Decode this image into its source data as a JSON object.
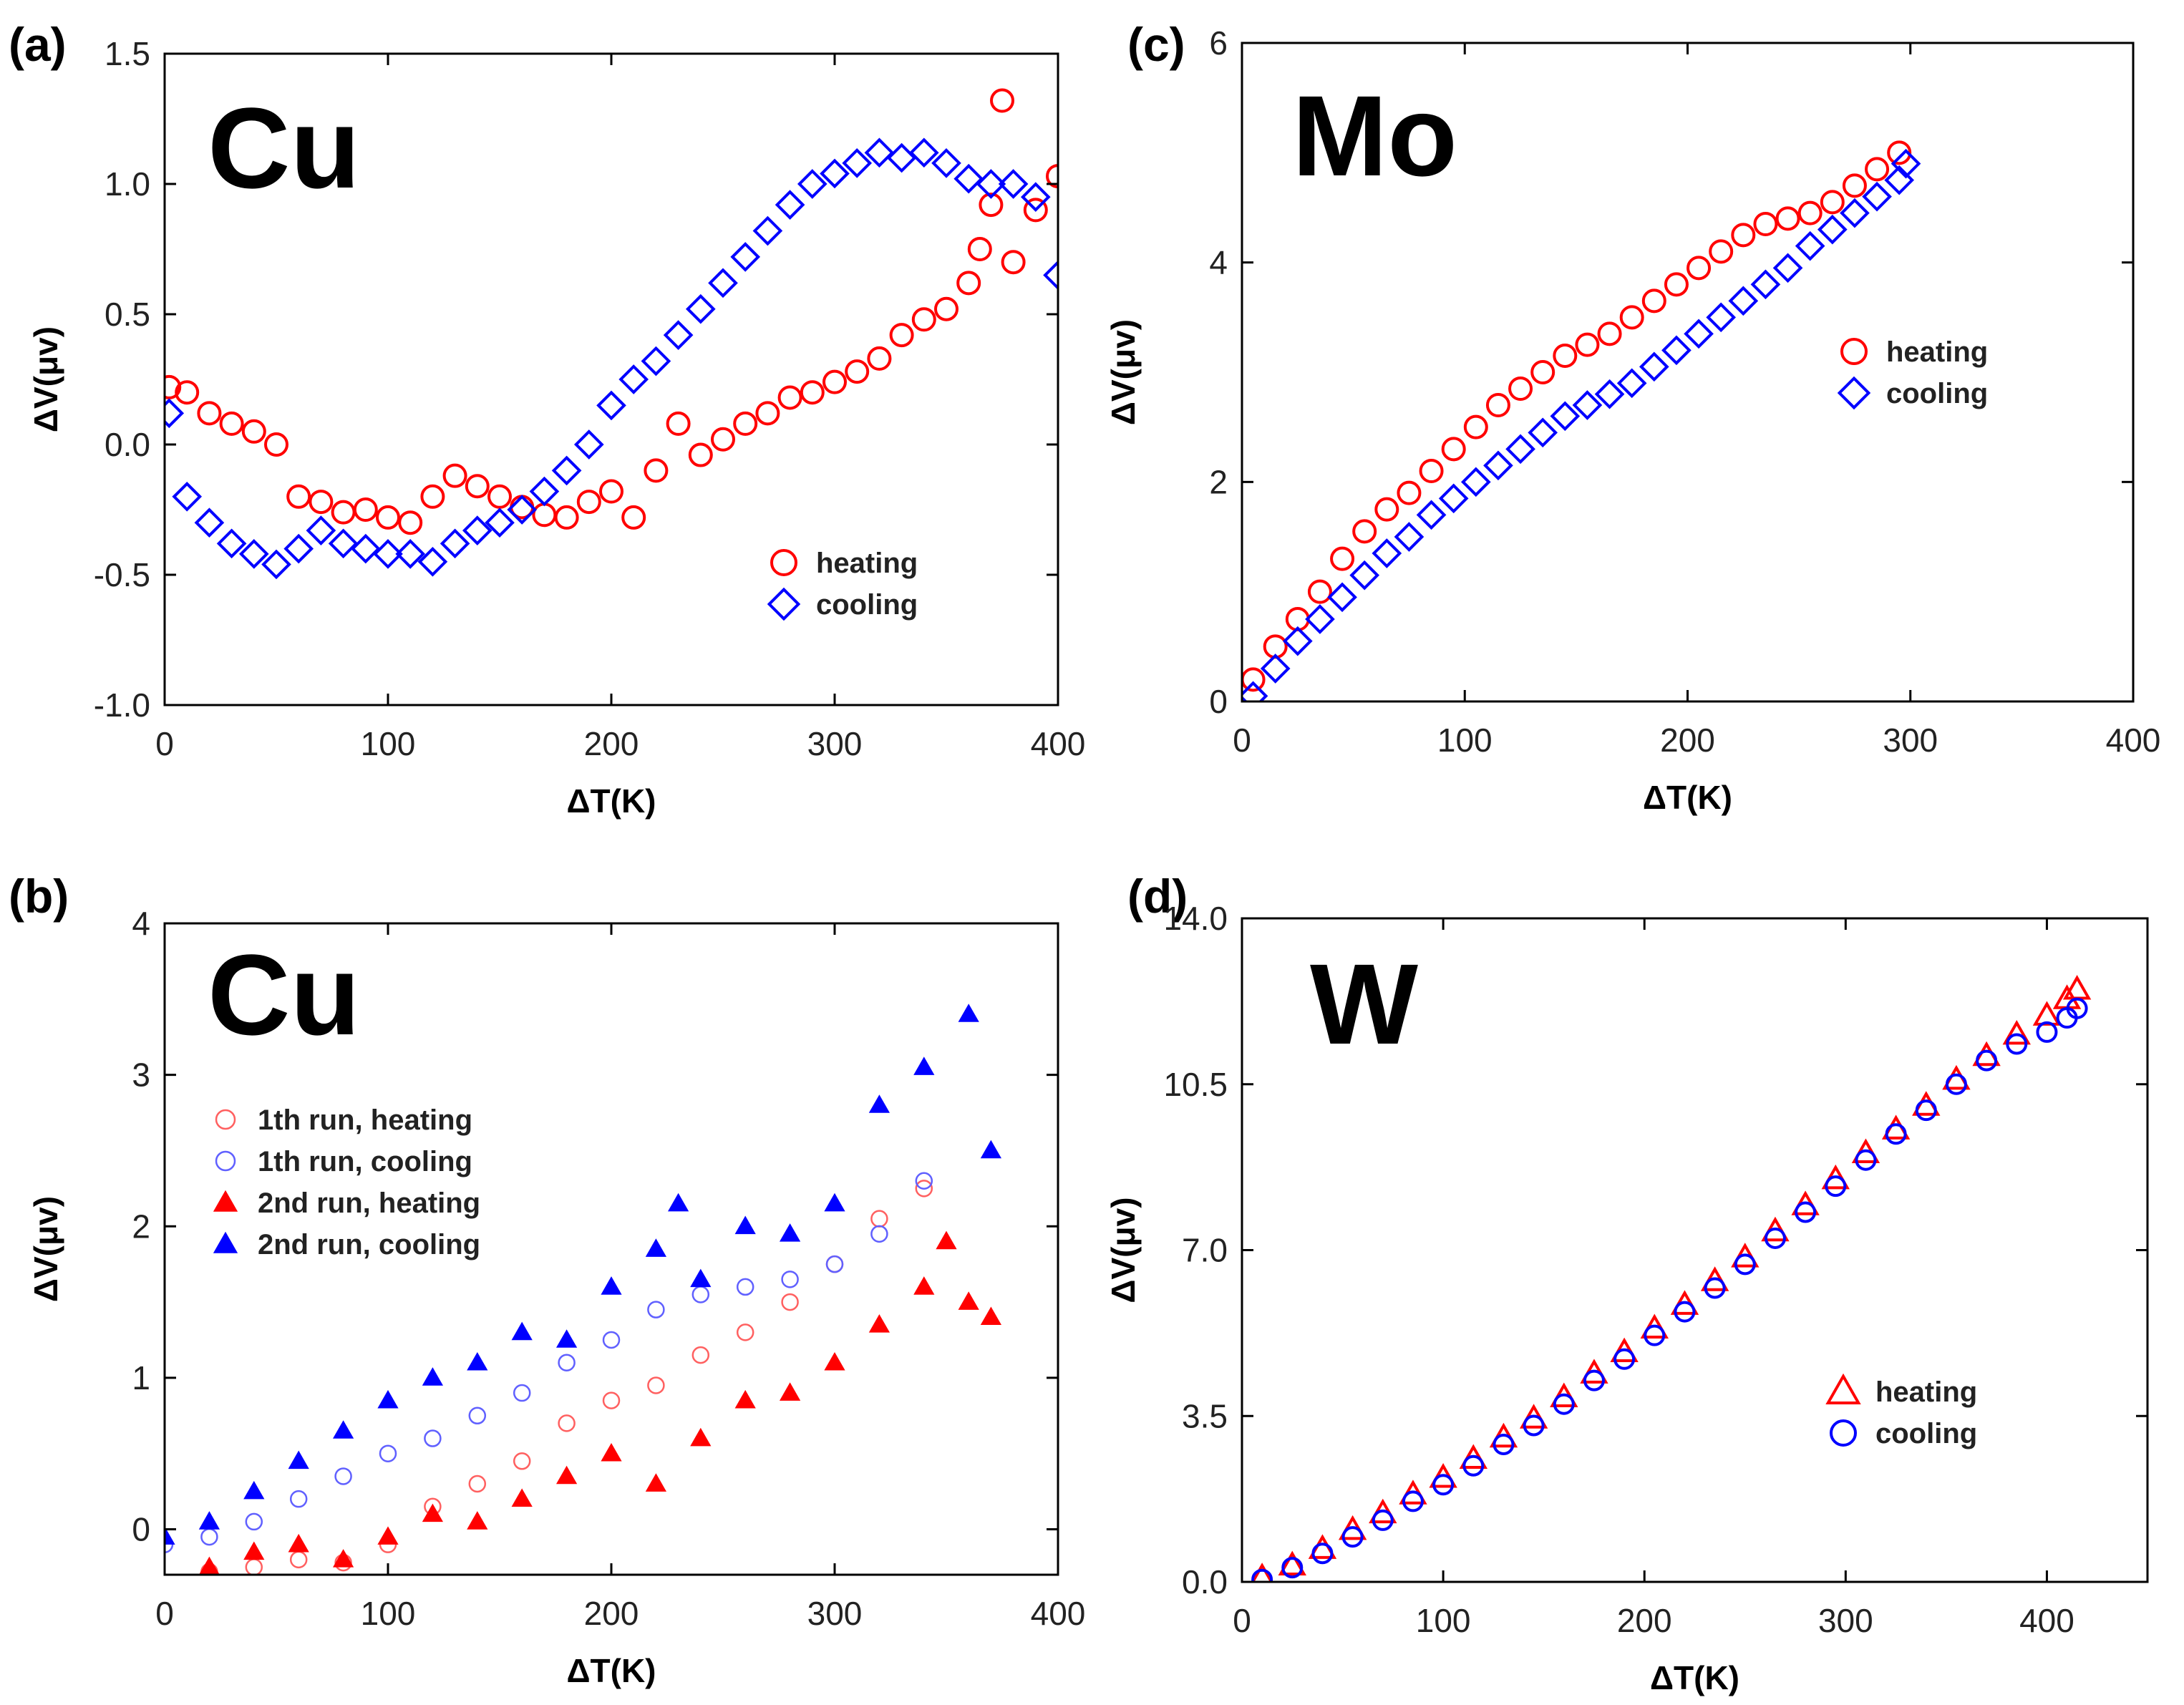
{
  "panels": [
    {
      "id": "a",
      "panel_label": "(a)",
      "element_label": "Cu",
      "chart_data": {
        "type": "scatter",
        "xlabel": "ΔT(K)",
        "ylabel": "ΔV(μv)",
        "xlim": [
          0,
          400
        ],
        "ylim": [
          -1.0,
          1.5
        ],
        "xticks": [
          0,
          100,
          200,
          300,
          400
        ],
        "xtick_labels": [
          "0",
          "100",
          "200",
          "300",
          "400"
        ],
        "yticks": [
          -1.0,
          -0.5,
          0.0,
          0.5,
          1.0,
          1.5
        ],
        "ytick_labels": [
          "-1.0",
          "-0.5",
          "0.0",
          "0.5",
          "1.0",
          "1.5"
        ],
        "grid": false,
        "legend_position": "lower-right",
        "series": [
          {
            "name": "heating",
            "color": "#ff0000",
            "marker": "open-circle",
            "x": [
              2,
              10,
              20,
              30,
              40,
              50,
              60,
              70,
              80,
              90,
              100,
              110,
              120,
              130,
              140,
              150,
              160,
              170,
              180,
              190,
              200,
              210,
              220,
              230,
              240,
              250,
              260,
              270,
              280,
              290,
              300,
              310,
              320,
              330,
              340,
              350,
              360,
              365,
              370,
              375,
              380,
              390,
              400
            ],
            "y": [
              0.22,
              0.2,
              0.12,
              0.08,
              0.05,
              0.0,
              -0.2,
              -0.22,
              -0.26,
              -0.25,
              -0.28,
              -0.3,
              -0.2,
              -0.12,
              -0.16,
              -0.2,
              -0.24,
              -0.27,
              -0.28,
              -0.22,
              -0.18,
              -0.28,
              -0.1,
              0.08,
              -0.04,
              0.02,
              0.08,
              0.12,
              0.18,
              0.2,
              0.24,
              0.28,
              0.33,
              0.42,
              0.48,
              0.52,
              0.62,
              0.75,
              0.92,
              1.32,
              0.7,
              0.9,
              1.03
            ]
          },
          {
            "name": "cooling",
            "color": "#0000ff",
            "marker": "open-diamond",
            "x": [
              2,
              10,
              20,
              30,
              40,
              50,
              60,
              70,
              80,
              90,
              100,
              110,
              120,
              130,
              140,
              150,
              160,
              170,
              180,
              190,
              200,
              210,
              220,
              230,
              240,
              250,
              260,
              270,
              280,
              290,
              300,
              310,
              320,
              330,
              340,
              350,
              360,
              370,
              380,
              390,
              400
            ],
            "y": [
              0.12,
              -0.2,
              -0.3,
              -0.38,
              -0.42,
              -0.46,
              -0.4,
              -0.33,
              -0.38,
              -0.4,
              -0.42,
              -0.42,
              -0.45,
              -0.38,
              -0.33,
              -0.3,
              -0.25,
              -0.18,
              -0.1,
              0.0,
              0.15,
              0.25,
              0.32,
              0.42,
              0.52,
              0.62,
              0.72,
              0.82,
              0.92,
              1.0,
              1.04,
              1.08,
              1.12,
              1.1,
              1.12,
              1.08,
              1.02,
              1.0,
              1.0,
              0.95,
              0.65
            ]
          }
        ]
      }
    },
    {
      "id": "b",
      "panel_label": "(b)",
      "element_label": "Cu",
      "chart_data": {
        "type": "scatter",
        "xlabel": "ΔT(K)",
        "ylabel": "ΔV(μv)",
        "xlim": [
          0,
          400
        ],
        "ylim": [
          -0.3,
          4.0
        ],
        "xticks": [
          0,
          100,
          200,
          300,
          400
        ],
        "xtick_labels": [
          "0",
          "100",
          "200",
          "300",
          "400"
        ],
        "yticks": [
          0,
          1,
          2,
          3,
          4
        ],
        "ytick_labels": [
          "0",
          "1",
          "2",
          "3",
          "4"
        ],
        "grid": false,
        "legend_position": "upper-left",
        "series": [
          {
            "name": "1th run, heating",
            "color": "#ff6060",
            "marker": "open-circle-small",
            "x": [
              20,
              40,
              60,
              80,
              100,
              120,
              140,
              160,
              180,
              200,
              220,
              240,
              260,
              280,
              300,
              320,
              340
            ],
            "y": [
              -0.28,
              -0.25,
              -0.2,
              -0.22,
              -0.1,
              0.15,
              0.3,
              0.45,
              0.7,
              0.85,
              0.95,
              1.15,
              1.3,
              1.5,
              1.75,
              2.05,
              2.25
            ]
          },
          {
            "name": "1th run, cooling",
            "color": "#6060ff",
            "marker": "open-circle-small",
            "x": [
              0,
              20,
              40,
              60,
              80,
              100,
              120,
              140,
              160,
              180,
              200,
              220,
              240,
              260,
              280,
              300,
              320,
              340
            ],
            "y": [
              -0.1,
              -0.05,
              0.05,
              0.2,
              0.35,
              0.5,
              0.6,
              0.75,
              0.9,
              1.1,
              1.25,
              1.45,
              1.55,
              1.6,
              1.65,
              1.75,
              1.95,
              2.3
            ]
          },
          {
            "name": "2nd run, heating",
            "color": "#ff0000",
            "marker": "filled-triangle",
            "x": [
              20,
              40,
              60,
              80,
              100,
              120,
              140,
              160,
              180,
              200,
              220,
              240,
              260,
              280,
              300,
              320,
              340,
              350,
              360,
              370
            ],
            "y": [
              -0.25,
              -0.15,
              -0.1,
              -0.2,
              -0.05,
              0.1,
              0.05,
              0.2,
              0.35,
              0.5,
              0.3,
              0.6,
              0.85,
              0.9,
              1.1,
              1.35,
              1.6,
              1.9,
              1.5,
              1.4
            ]
          },
          {
            "name": "2nd run, cooling",
            "color": "#0000ff",
            "marker": "filled-triangle",
            "x": [
              0,
              20,
              40,
              60,
              80,
              100,
              120,
              140,
              160,
              180,
              200,
              220,
              230,
              240,
              260,
              280,
              300,
              320,
              340,
              360,
              370
            ],
            "y": [
              -0.05,
              0.05,
              0.25,
              0.45,
              0.65,
              0.85,
              1.0,
              1.1,
              1.3,
              1.25,
              1.6,
              1.85,
              2.15,
              1.65,
              2.0,
              1.95,
              2.15,
              2.8,
              3.05,
              3.4,
              2.5
            ]
          }
        ]
      }
    },
    {
      "id": "c",
      "panel_label": "(c)",
      "element_label": "Mo",
      "chart_data": {
        "type": "scatter",
        "xlabel": "ΔT(K)",
        "ylabel": "ΔV(μv)",
        "xlim": [
          0,
          400
        ],
        "ylim": [
          0,
          6
        ],
        "xticks": [
          0,
          100,
          200,
          300,
          400
        ],
        "xtick_labels": [
          "0",
          "100",
          "200",
          "300",
          "400"
        ],
        "yticks": [
          0,
          2,
          4,
          6
        ],
        "ytick_labels": [
          "0",
          "2",
          "4",
          "6"
        ],
        "grid": false,
        "legend_position": "upper-right",
        "series": [
          {
            "name": "heating",
            "color": "#ff0000",
            "marker": "open-circle",
            "x": [
              5,
              15,
              25,
              35,
              45,
              55,
              65,
              75,
              85,
              95,
              105,
              115,
              125,
              135,
              145,
              155,
              165,
              175,
              185,
              195,
              205,
              215,
              225,
              235,
              245,
              255,
              265,
              275,
              285,
              295
            ],
            "y": [
              0.2,
              0.5,
              0.75,
              1.0,
              1.3,
              1.55,
              1.75,
              1.9,
              2.1,
              2.3,
              2.5,
              2.7,
              2.85,
              3.0,
              3.15,
              3.25,
              3.35,
              3.5,
              3.65,
              3.8,
              3.95,
              4.1,
              4.25,
              4.35,
              4.4,
              4.45,
              4.55,
              4.7,
              4.85,
              5.0
            ]
          },
          {
            "name": "cooling",
            "color": "#0000ff",
            "marker": "open-diamond",
            "x": [
              5,
              15,
              25,
              35,
              45,
              55,
              65,
              75,
              85,
              95,
              105,
              115,
              125,
              135,
              145,
              155,
              165,
              175,
              185,
              195,
              205,
              215,
              225,
              235,
              245,
              255,
              265,
              275,
              285,
              295,
              298
            ],
            "y": [
              0.05,
              0.3,
              0.55,
              0.75,
              0.95,
              1.15,
              1.35,
              1.5,
              1.7,
              1.85,
              2.0,
              2.15,
              2.3,
              2.45,
              2.6,
              2.7,
              2.8,
              2.9,
              3.05,
              3.2,
              3.35,
              3.5,
              3.65,
              3.8,
              3.95,
              4.15,
              4.3,
              4.45,
              4.6,
              4.75,
              4.9
            ]
          }
        ]
      }
    },
    {
      "id": "d",
      "panel_label": "(d)",
      "element_label": "W",
      "chart_data": {
        "type": "scatter",
        "xlabel": "ΔT(K)",
        "ylabel": "ΔV(μv)",
        "xlim": [
          0,
          450
        ],
        "ylim": [
          0,
          14
        ],
        "xticks": [
          0,
          100,
          200,
          300,
          400
        ],
        "xtick_labels": [
          "0",
          "100",
          "200",
          "300",
          "400"
        ],
        "yticks": [
          0,
          3.5,
          7,
          10.5,
          14
        ],
        "ytick_labels": [
          "0.0",
          "3.5",
          "7.0",
          "10.5",
          "14.0"
        ],
        "grid": false,
        "legend_position": "lower-right",
        "series": [
          {
            "name": "heating",
            "color": "#ff0000",
            "marker": "open-triangle",
            "x": [
              10,
              25,
              40,
              55,
              70,
              85,
              100,
              115,
              130,
              145,
              160,
              175,
              190,
              205,
              220,
              235,
              250,
              265,
              280,
              295,
              310,
              325,
              340,
              355,
              370,
              385,
              400,
              410,
              415
            ],
            "y": [
              0.1,
              0.35,
              0.7,
              1.1,
              1.45,
              1.85,
              2.2,
              2.6,
              3.05,
              3.45,
              3.9,
              4.4,
              4.85,
              5.35,
              5.85,
              6.35,
              6.85,
              7.4,
              7.95,
              8.5,
              9.05,
              9.55,
              10.05,
              10.6,
              11.1,
              11.55,
              11.95,
              12.3,
              12.5
            ]
          },
          {
            "name": "cooling",
            "color": "#0000ff",
            "marker": "open-circle",
            "x": [
              10,
              25,
              40,
              55,
              70,
              85,
              100,
              115,
              130,
              145,
              160,
              175,
              190,
              205,
              220,
              235,
              250,
              265,
              280,
              295,
              310,
              325,
              340,
              355,
              370,
              385,
              400,
              410,
              415
            ],
            "y": [
              0.05,
              0.3,
              0.6,
              0.95,
              1.3,
              1.7,
              2.05,
              2.45,
              2.9,
              3.3,
              3.75,
              4.25,
              4.7,
              5.2,
              5.7,
              6.2,
              6.7,
              7.25,
              7.8,
              8.35,
              8.9,
              9.45,
              9.95,
              10.5,
              11.0,
              11.35,
              11.6,
              11.9,
              12.1
            ]
          }
        ]
      }
    }
  ]
}
